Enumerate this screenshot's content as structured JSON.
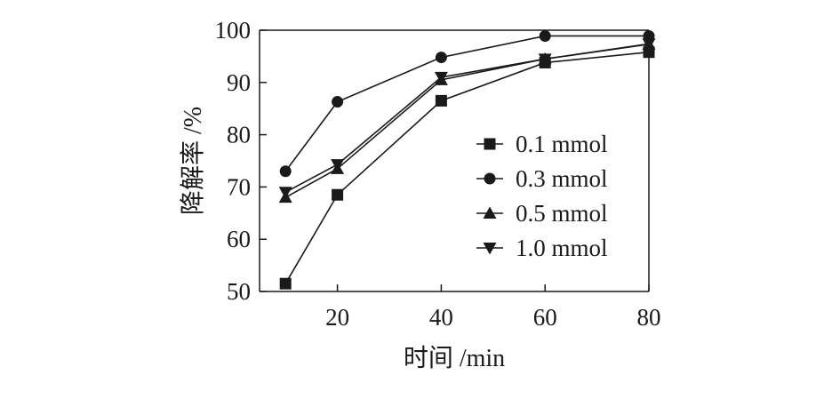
{
  "chart_data": {
    "type": "line",
    "title": "",
    "xlabel": "时间 /min",
    "ylabel": "降解率 /%",
    "x": [
      10,
      20,
      40,
      60,
      80
    ],
    "xticks": [
      20,
      40,
      60,
      80
    ],
    "yticks": [
      50,
      60,
      70,
      80,
      90,
      100
    ],
    "xlim": [
      5,
      80
    ],
    "ylim": [
      50,
      100
    ],
    "grid": false,
    "legend_position": "inside-lower-right",
    "series": [
      {
        "name": "0.1 mmol",
        "marker": "square",
        "values": [
          51.5,
          68.5,
          86.5,
          93.8,
          95.8
        ]
      },
      {
        "name": "0.3 mmol",
        "marker": "circle",
        "values": [
          73.0,
          86.3,
          94.8,
          98.9,
          98.9
        ]
      },
      {
        "name": "0.5 mmol",
        "marker": "triangle-up",
        "values": [
          68.0,
          73.5,
          90.5,
          94.5,
          97.3
        ]
      },
      {
        "name": "1.0 mmol",
        "marker": "triangle-down",
        "values": [
          69.0,
          74.3,
          91.0,
          94.5,
          97.4
        ]
      }
    ],
    "colors": {
      "line": "#1a1a1a",
      "marker": "#1a1a1a"
    }
  }
}
